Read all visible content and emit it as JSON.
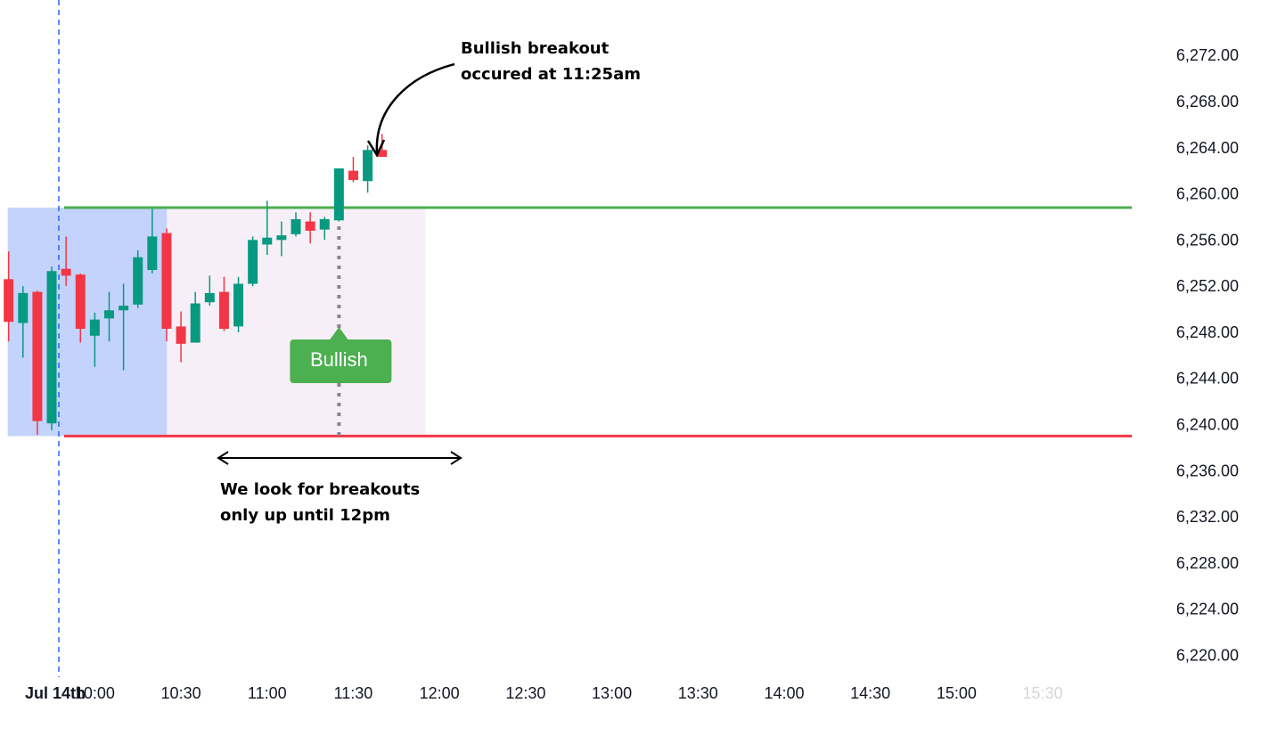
{
  "chart_data": {
    "type": "candlestick",
    "up_color": "#089981",
    "down_color": "#f23645",
    "xlim": [
      567,
      961
    ],
    "ylim": [
      6218.2,
      6276.9
    ],
    "xticks": [
      {
        "value": 570,
        "label": "Jul 14th"
      },
      {
        "value": 600,
        "label": "10:00"
      },
      {
        "value": 630,
        "label": "10:30"
      },
      {
        "value": 660,
        "label": "11:00"
      },
      {
        "value": 690,
        "label": "11:30"
      },
      {
        "value": 720,
        "label": "12:00"
      },
      {
        "value": 750,
        "label": "12:30"
      },
      {
        "value": 780,
        "label": "13:00"
      },
      {
        "value": 810,
        "label": "13:30"
      },
      {
        "value": 840,
        "label": "14:00"
      },
      {
        "value": 870,
        "label": "14:30"
      },
      {
        "value": 900,
        "label": "15:00"
      },
      {
        "value": 930,
        "label": "15:30"
      }
    ],
    "yticks": [
      {
        "value": 6272,
        "label": "6,272.00"
      },
      {
        "value": 6268,
        "label": "6,268.00"
      },
      {
        "value": 6264,
        "label": "6,264.00"
      },
      {
        "value": 6260,
        "label": "6,260.00"
      },
      {
        "value": 6256,
        "label": "6,256.00"
      },
      {
        "value": 6252,
        "label": "6,252.00"
      },
      {
        "value": 6248,
        "label": "6,248.00"
      },
      {
        "value": 6244,
        "label": "6,244.00"
      },
      {
        "value": 6240,
        "label": "6,240.00"
      },
      {
        "value": 6236,
        "label": "6,236.00"
      },
      {
        "value": 6232,
        "label": "6,232.00"
      },
      {
        "value": 6228,
        "label": "6,228.00"
      },
      {
        "value": 6224,
        "label": "6,224.00"
      },
      {
        "value": 6220,
        "label": "6,220.00"
      }
    ],
    "x": [
      570,
      575,
      580,
      585,
      590,
      595,
      600,
      605,
      610,
      615,
      620,
      625,
      630,
      635,
      640,
      645,
      650,
      655,
      660,
      665,
      670,
      675,
      680,
      685,
      690,
      695,
      700
    ],
    "open": [
      6252.7,
      6248.9,
      6251.6,
      6240.2,
      6253.6,
      6253.1,
      6247.8,
      6249.3,
      6250.0,
      6250.5,
      6253.5,
      6256.7,
      6248.6,
      6247.2,
      6250.7,
      6251.6,
      6248.6,
      6252.3,
      6255.7,
      6256.1,
      6256.6,
      6257.7,
      6257.0,
      6257.8,
      6262.1,
      6261.2,
      6263.9
    ],
    "high": [
      6255.1,
      6252.1,
      6251.7,
      6253.8,
      6256.4,
      6253.2,
      6249.8,
      6251.6,
      6252.3,
      6255.2,
      6258.8,
      6257.1,
      6249.9,
      6251.6,
      6253.0,
      6252.9,
      6252.9,
      6256.4,
      6259.5,
      6257.7,
      6258.5,
      6258.5,
      6258.1,
      6262.3,
      6263.3,
      6264.3,
      6265.3
    ],
    "low": [
      6247.3,
      6245.9,
      6239.2,
      6239.6,
      6252.1,
      6247.2,
      6245.1,
      6247.3,
      6244.8,
      6250.2,
      6253.2,
      6247.3,
      6245.5,
      6247.2,
      6250.4,
      6248.2,
      6248.1,
      6252.1,
      6254.8,
      6254.7,
      6256.4,
      6255.8,
      6256.1,
      6257.7,
      6261.1,
      6260.2,
      6263.3
    ],
    "close": [
      6249.0,
      6251.5,
      6240.4,
      6253.4,
      6253.0,
      6248.4,
      6249.2,
      6250.0,
      6250.4,
      6254.6,
      6256.4,
      6248.4,
      6247.1,
      6250.6,
      6251.5,
      6248.4,
      6252.3,
      6256.1,
      6256.3,
      6256.5,
      6257.9,
      6256.9,
      6257.9,
      6262.3,
      6261.3,
      6263.9,
      6263.3
    ],
    "levels": [
      {
        "value": 6258.9,
        "color": "#4caf50"
      },
      {
        "value": 6239.1,
        "color": "#f23645"
      }
    ],
    "zones": [
      {
        "x": [
          569.7,
          625.1
        ],
        "color": "#c3d3fb"
      },
      {
        "x": [
          625.1,
          715.1
        ],
        "color": "#f7eff7"
      }
    ],
    "breakout": {
      "x": 685,
      "label": "Bullish",
      "color": "#4caf50"
    },
    "annotations": [
      "Bullish breakout",
      "occured at 11:25am",
      "We look for breakouts",
      "only up until 12pm"
    ]
  }
}
